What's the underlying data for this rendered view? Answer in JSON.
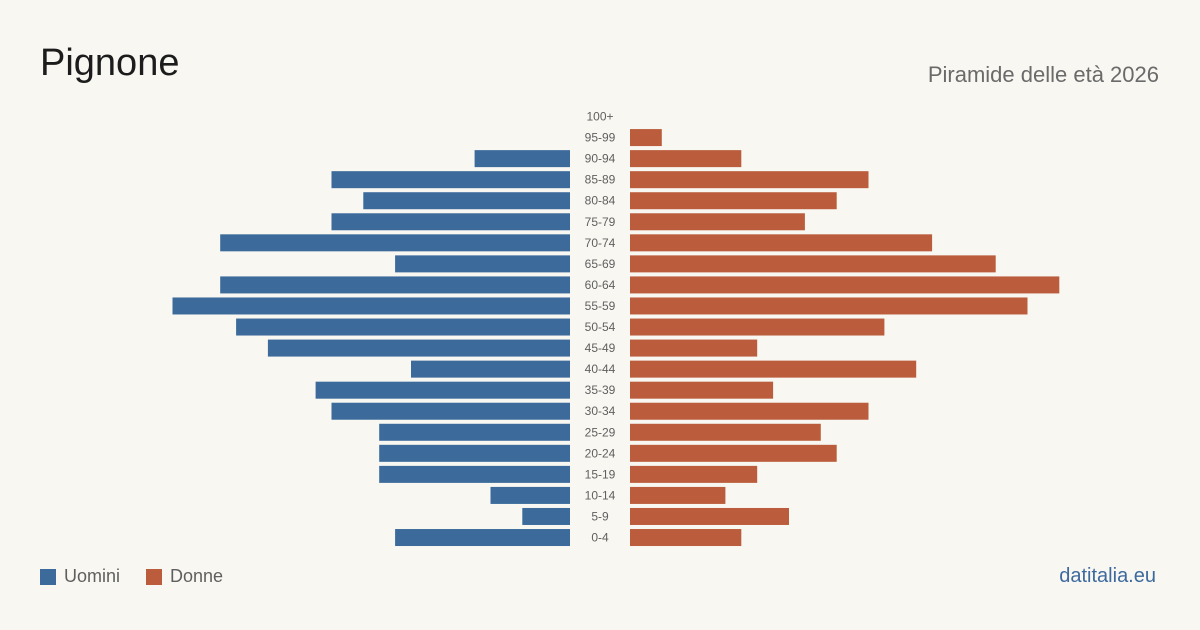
{
  "title": "Pignone",
  "subtitle": "Piramide delle età 2026",
  "source": "datitalia.eu",
  "legend": {
    "men": "Uomini",
    "women": "Donne"
  },
  "colors": {
    "men": "#3b6a9b",
    "women": "#bb5d3c",
    "background": "#f9f7f2",
    "label": "#5f5f5f"
  },
  "chart_data": {
    "type": "bar",
    "orientation": "horizontal-pyramid",
    "categories": [
      "100+",
      "95-99",
      "90-94",
      "85-89",
      "80-84",
      "75-79",
      "70-74",
      "65-69",
      "60-64",
      "55-59",
      "50-54",
      "45-49",
      "40-44",
      "35-39",
      "30-34",
      "25-29",
      "20-24",
      "15-19",
      "10-14",
      "5-9",
      "0-4"
    ],
    "series": [
      {
        "name": "Uomini",
        "values": [
          0,
          0,
          6,
          15,
          13,
          15,
          22,
          11,
          22,
          25,
          21,
          19,
          10,
          16,
          15,
          12,
          12,
          12,
          5,
          3,
          11
        ]
      },
      {
        "name": "Donne",
        "values": [
          0,
          2,
          7,
          15,
          13,
          11,
          19,
          23,
          27,
          25,
          16,
          8,
          18,
          9,
          15,
          12,
          13,
          8,
          6,
          10,
          7
        ]
      }
    ],
    "legend_position": "bottom-left",
    "grid": false
  }
}
